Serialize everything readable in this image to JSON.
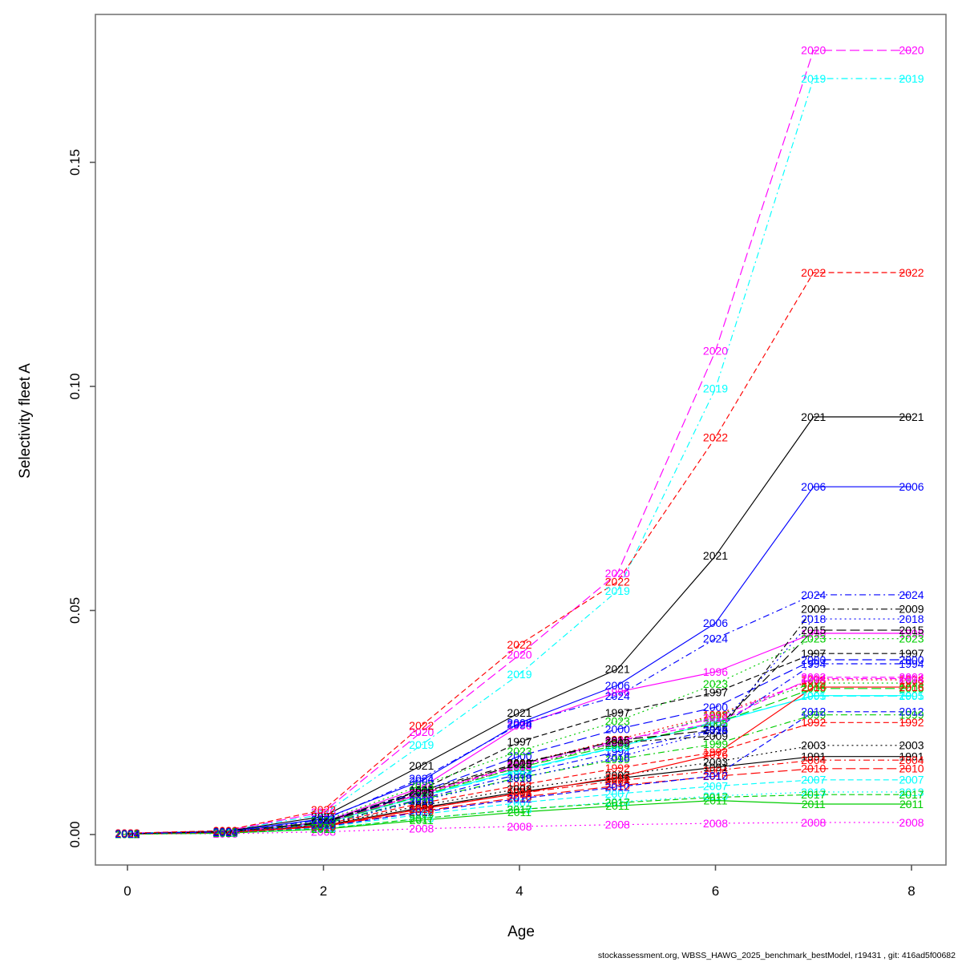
{
  "figure": {
    "background": "#ffffff",
    "footer": "stockassessment.org, WBSS_HAWG_2025_benchmark_bestModel, r19431 , git: 416ad5f00682"
  },
  "axes": {
    "x_label": "Age",
    "y_label": "Selectivity fleet A",
    "x_tick_labels": [
      "0",
      "2",
      "4",
      "6",
      "8"
    ],
    "x_tick_values": [
      0,
      2,
      4,
      6,
      8
    ],
    "y_tick_labels": [
      "0.00",
      "0.05",
      "0.10",
      "0.15"
    ],
    "y_tick_values": [
      0.0,
      0.05,
      0.1,
      0.15
    ],
    "box_color": "#777777",
    "tick_color": "#555555"
  },
  "chart_data": {
    "type": "line",
    "title": "",
    "xlabel": "Age",
    "ylabel": "Selectivity fleet A",
    "x": [
      0,
      1,
      2,
      3,
      4,
      5,
      6,
      7,
      8
    ],
    "xlim": [
      -0.33,
      8.35
    ],
    "ylim": [
      -0.007,
      0.183
    ],
    "grid": false,
    "legend_position": "none",
    "point_labels": "year-at-every-age",
    "palette_note": "R default colors recycled 1:6, linetypes recycled 1:5",
    "series": [
      {
        "name": "1991",
        "color": "#000000",
        "linetype": "solid",
        "values": [
          0.0002,
          0.0005,
          0.002,
          0.006,
          0.0095,
          0.0125,
          0.015,
          0.0174,
          0.0174
        ]
      },
      {
        "name": "1992",
        "color": "#FF0000",
        "linetype": "dashed",
        "values": [
          0.0002,
          0.0005,
          0.0022,
          0.007,
          0.011,
          0.0148,
          0.0184,
          0.025,
          0.025
        ]
      },
      {
        "name": "1993",
        "color": "#00CD00",
        "linetype": "dotted",
        "values": [
          0.0002,
          0.0006,
          0.0026,
          0.009,
          0.015,
          0.0205,
          0.0265,
          0.0338,
          0.0338
        ]
      },
      {
        "name": "1994",
        "color": "#0000FF",
        "linetype": "dotdash",
        "values": [
          0.0002,
          0.0005,
          0.0023,
          0.008,
          0.0135,
          0.0185,
          0.0235,
          0.0381,
          0.0381
        ]
      },
      {
        "name": "1995",
        "color": "#00FFFF",
        "linetype": "longdash",
        "values": [
          0.0002,
          0.0006,
          0.0025,
          0.0085,
          0.0142,
          0.0195,
          0.0252,
          0.0309,
          0.0309
        ]
      },
      {
        "name": "1996",
        "color": "#FF00FF",
        "linetype": "solid",
        "values": [
          0.0002,
          0.0006,
          0.0028,
          0.0105,
          0.0243,
          0.0318,
          0.0363,
          0.0449,
          0.0449
        ]
      },
      {
        "name": "1997",
        "color": "#000000",
        "linetype": "dashed",
        "values": [
          0.0002,
          0.0006,
          0.0027,
          0.01,
          0.0207,
          0.0272,
          0.0317,
          0.0404,
          0.0404
        ]
      },
      {
        "name": "1998",
        "color": "#FF0000",
        "linetype": "dotted",
        "values": [
          0.0002,
          0.0006,
          0.0026,
          0.0092,
          0.0158,
          0.0212,
          0.0267,
          0.0345,
          0.0345
        ]
      },
      {
        "name": "1999",
        "color": "#00CD00",
        "linetype": "dotdash",
        "values": [
          0.0002,
          0.0005,
          0.0023,
          0.0078,
          0.0127,
          0.0168,
          0.0202,
          0.0267,
          0.0267
        ]
      },
      {
        "name": "2000",
        "color": "#0000FF",
        "linetype": "longdash",
        "values": [
          0.0002,
          0.0006,
          0.0027,
          0.0096,
          0.0175,
          0.0235,
          0.0284,
          0.039,
          0.039
        ]
      },
      {
        "name": "2001",
        "color": "#00FFFF",
        "linetype": "solid",
        "values": [
          0.0002,
          0.0006,
          0.0025,
          0.0086,
          0.0144,
          0.0196,
          0.025,
          0.031,
          0.031
        ]
      },
      {
        "name": "2002",
        "color": "#FF00FF",
        "linetype": "dashed",
        "values": [
          0.0002,
          0.0006,
          0.0026,
          0.009,
          0.0155,
          0.021,
          0.0249,
          0.0351,
          0.0351
        ]
      },
      {
        "name": "2003",
        "color": "#000000",
        "linetype": "dotted",
        "values": [
          0.0002,
          0.0005,
          0.0021,
          0.0065,
          0.0102,
          0.0132,
          0.0162,
          0.0199,
          0.0199
        ]
      },
      {
        "name": "2004",
        "color": "#FF0000",
        "linetype": "dotdash",
        "values": [
          0.0002,
          0.0005,
          0.002,
          0.0058,
          0.0092,
          0.012,
          0.0143,
          0.0166,
          0.0166
        ]
      },
      {
        "name": "2005",
        "color": "#00CD00",
        "linetype": "longdash",
        "values": [
          0.0002,
          0.0006,
          0.0025,
          0.0087,
          0.015,
          0.02,
          0.0248,
          0.0326,
          0.0326
        ]
      },
      {
        "name": "2006",
        "color": "#0000FF",
        "linetype": "solid",
        "values": [
          0.0002,
          0.0006,
          0.0035,
          0.012,
          0.0249,
          0.0333,
          0.0472,
          0.0776,
          0.0776
        ]
      },
      {
        "name": "2007",
        "color": "#00FFFF",
        "linetype": "dashed",
        "values": [
          0.0001,
          0.0004,
          0.0016,
          0.0045,
          0.0071,
          0.0091,
          0.0108,
          0.0122,
          0.0122
        ]
      },
      {
        "name": "2008",
        "color": "#FF00FF",
        "linetype": "dotted",
        "values": [
          0.0001,
          0.0002,
          0.0006,
          0.0013,
          0.0018,
          0.0022,
          0.0025,
          0.0027,
          0.0027
        ]
      },
      {
        "name": "2009",
        "color": "#000000",
        "linetype": "dotdash",
        "values": [
          0.0002,
          0.0006,
          0.0028,
          0.0098,
          0.016,
          0.0205,
          0.022,
          0.0503,
          0.0503
        ]
      },
      {
        "name": "2010",
        "color": "#FF0000",
        "linetype": "longdash",
        "values": [
          0.0001,
          0.0004,
          0.0018,
          0.0052,
          0.0083,
          0.0109,
          0.013,
          0.0147,
          0.0147
        ]
      },
      {
        "name": "2011",
        "color": "#00CD00",
        "linetype": "solid",
        "values": [
          0.0001,
          0.0003,
          0.0012,
          0.0032,
          0.005,
          0.0064,
          0.0076,
          0.0068,
          0.0068
        ]
      },
      {
        "name": "2012",
        "color": "#0000FF",
        "linetype": "dashed",
        "values": [
          0.0001,
          0.0004,
          0.0017,
          0.005,
          0.008,
          0.0106,
          0.0131,
          0.0274,
          0.0274
        ]
      },
      {
        "name": "2013",
        "color": "#00FFFF",
        "linetype": "dotted",
        "values": [
          0.0001,
          0.0003,
          0.0013,
          0.0036,
          0.0056,
          0.0073,
          0.0086,
          0.0095,
          0.0095
        ]
      },
      {
        "name": "2014",
        "color": "#FF00FF",
        "linetype": "dotdash",
        "values": [
          0.0002,
          0.0006,
          0.0026,
          0.0091,
          0.0152,
          0.0207,
          0.0261,
          0.0348,
          0.0348
        ]
      },
      {
        "name": "2015",
        "color": "#000000",
        "linetype": "longdash",
        "values": [
          0.0002,
          0.0006,
          0.0026,
          0.0094,
          0.0157,
          0.021,
          0.0234,
          0.0456,
          0.0456
        ]
      },
      {
        "name": "2016",
        "color": "#FF0000",
        "linetype": "solid",
        "values": [
          0.0001,
          0.0004,
          0.0018,
          0.0057,
          0.0092,
          0.0128,
          0.0179,
          0.0329,
          0.0329
        ]
      },
      {
        "name": "2017",
        "color": "#00CD00",
        "linetype": "dashed",
        "values": [
          0.0001,
          0.0003,
          0.0013,
          0.0036,
          0.0056,
          0.0071,
          0.0083,
          0.0089,
          0.0089
        ]
      },
      {
        "name": "2018",
        "color": "#0000FF",
        "linetype": "dotted",
        "values": [
          0.0002,
          0.0005,
          0.0022,
          0.0076,
          0.0126,
          0.0172,
          0.0232,
          0.0481,
          0.0481
        ]
      },
      {
        "name": "2019",
        "color": "#00FFFF",
        "linetype": "dotdash",
        "values": [
          0.0003,
          0.0008,
          0.0045,
          0.02,
          0.0358,
          0.0544,
          0.0995,
          0.1687,
          0.1687
        ]
      },
      {
        "name": "2020",
        "color": "#FF00FF",
        "linetype": "longdash",
        "values": [
          0.0003,
          0.0008,
          0.005,
          0.0229,
          0.0401,
          0.0583,
          0.1079,
          0.175,
          0.175
        ]
      },
      {
        "name": "2021",
        "color": "#000000",
        "linetype": "solid",
        "values": [
          0.0002,
          0.0007,
          0.004,
          0.0154,
          0.0272,
          0.0369,
          0.0622,
          0.0932,
          0.0932
        ]
      },
      {
        "name": "2022",
        "color": "#FF0000",
        "linetype": "dashed",
        "values": [
          0.0003,
          0.0009,
          0.0055,
          0.0243,
          0.0424,
          0.0564,
          0.0886,
          0.1254,
          0.1254
        ]
      },
      {
        "name": "2023",
        "color": "#00CD00",
        "linetype": "dotted",
        "values": [
          0.0002,
          0.0006,
          0.003,
          0.011,
          0.0186,
          0.0253,
          0.0336,
          0.0437,
          0.0437
        ]
      },
      {
        "name": "2024",
        "color": "#0000FF",
        "linetype": "dotdash",
        "values": [
          0.0002,
          0.0006,
          0.0033,
          0.0125,
          0.0246,
          0.0309,
          0.0437,
          0.0535,
          0.0535
        ]
      }
    ]
  }
}
